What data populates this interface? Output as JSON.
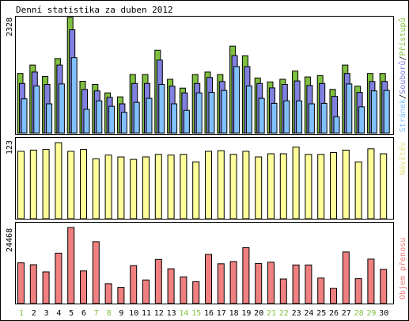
{
  "title": "Denní statistika za duben 2012",
  "colors": {
    "frame": "#000000",
    "accesses": "#80c040",
    "files": "#8080e0",
    "hits": "#80c0ff",
    "visits": "#ffff99",
    "volume": "#f08080",
    "weekend_day": "#80c040",
    "workday": "#000000"
  },
  "chart_data": [
    {
      "type": "bar",
      "categories": [
        "1",
        "2",
        "3",
        "4",
        "5",
        "6",
        "7",
        "8",
        "9",
        "10",
        "11",
        "12",
        "13",
        "14",
        "15",
        "16",
        "17",
        "18",
        "19",
        "20",
        "21",
        "22",
        "23",
        "24",
        "25",
        "26",
        "27",
        "28",
        "29",
        "30"
      ],
      "y_max_label": "2328",
      "ylabel_parts": [
        "Stránek",
        "/",
        "Souborů",
        "/",
        "Přístupů"
      ],
      "ylim": [
        0,
        2328
      ],
      "series": [
        {
          "name": "Přístupů",
          "values": [
            1200,
            1370,
            1140,
            1500,
            2328,
            1045,
            980,
            810,
            730,
            1180,
            1180,
            1670,
            1085,
            905,
            1180,
            1230,
            1180,
            1750,
            1555,
            1110,
            1030,
            1085,
            1250,
            1130,
            1160,
            880,
            1370,
            945,
            1200,
            1200
          ]
        },
        {
          "name": "Souborů",
          "values": [
            1000,
            1230,
            980,
            1370,
            2080,
            880,
            850,
            720,
            590,
            1000,
            1000,
            1470,
            945,
            810,
            1000,
            1120,
            1040,
            1560,
            1340,
            1000,
            910,
            980,
            1050,
            960,
            1000,
            740,
            1200,
            820,
            1040,
            1040
          ]
        },
        {
          "name": "Stránek",
          "values": [
            690,
            950,
            590,
            990,
            1520,
            480,
            650,
            540,
            420,
            620,
            700,
            980,
            590,
            460,
            810,
            820,
            860,
            1340,
            950,
            700,
            600,
            650,
            650,
            590,
            600,
            330,
            990,
            530,
            850,
            860
          ]
        }
      ]
    },
    {
      "type": "bar",
      "categories": [
        "1",
        "2",
        "3",
        "4",
        "5",
        "6",
        "7",
        "8",
        "9",
        "10",
        "11",
        "12",
        "13",
        "14",
        "15",
        "16",
        "17",
        "18",
        "19",
        "20",
        "21",
        "22",
        "23",
        "24",
        "25",
        "26",
        "27",
        "28",
        "29",
        "30"
      ],
      "y_max_label": "123",
      "ylabel": "Návštěv",
      "ylim": [
        0,
        123
      ],
      "series": [
        {
          "name": "Návštěv",
          "values": [
            109,
            111,
            112,
            123,
            109,
            112,
            97,
            103,
            100,
            96,
            100,
            104,
            103,
            104,
            92,
            109,
            110,
            104,
            109,
            100,
            105,
            105,
            116,
            104,
            104,
            107,
            111,
            92,
            113,
            105
          ]
        }
      ]
    },
    {
      "type": "bar",
      "categories": [
        "1",
        "2",
        "3",
        "4",
        "5",
        "6",
        "7",
        "8",
        "9",
        "10",
        "11",
        "12",
        "13",
        "14",
        "15",
        "16",
        "17",
        "18",
        "19",
        "20",
        "21",
        "22",
        "23",
        "24",
        "25",
        "26",
        "27",
        "28",
        "29",
        "30"
      ],
      "y_max_label": "24468",
      "ylabel": "Objem přenosu",
      "ylim": [
        0,
        24468
      ],
      "series": [
        {
          "name": "Objem přenosu",
          "values": [
            13100,
            12500,
            10200,
            16200,
            24468,
            10500,
            19900,
            6400,
            5200,
            12200,
            7600,
            14200,
            11200,
            8600,
            7000,
            15800,
            12800,
            13500,
            18000,
            12900,
            13300,
            7900,
            12400,
            12400,
            8200,
            4900,
            16600,
            8000,
            14300,
            11000
          ]
        }
      ]
    }
  ],
  "x_axis": {
    "labels": [
      "1",
      "2",
      "3",
      "4",
      "5",
      "6",
      "7",
      "8",
      "9",
      "10",
      "11",
      "12",
      "13",
      "14",
      "15",
      "16",
      "17",
      "18",
      "19",
      "20",
      "21",
      "22",
      "23",
      "24",
      "25",
      "26",
      "27",
      "28",
      "29",
      "30"
    ],
    "weekend_days": [
      1,
      7,
      8,
      14,
      15,
      21,
      22,
      28,
      29
    ]
  }
}
